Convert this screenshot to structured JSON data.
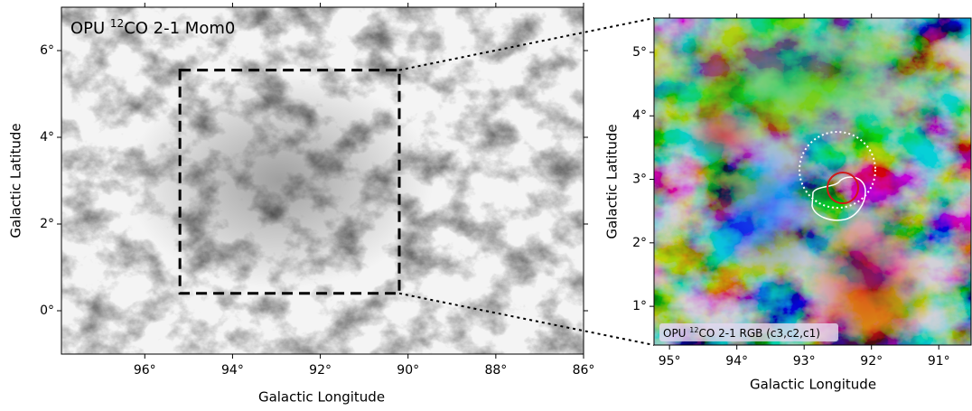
{
  "chart_data": [
    {
      "type": "image",
      "label": {
        "prefix": "OPU ",
        "sup": "12",
        "suffix": "CO 2-1 Mom0"
      },
      "xlabel": "Galactic Longitude",
      "ylabel": "Galactic Latitude",
      "xlim": [
        97.9,
        86
      ],
      "ylim": [
        -1,
        7
      ],
      "xticks": [
        {
          "value": 96,
          "label": "96°"
        },
        {
          "value": 94,
          "label": "94°"
        },
        {
          "value": 92,
          "label": "92°"
        },
        {
          "value": 90,
          "label": "90°"
        },
        {
          "value": 88,
          "label": "88°"
        },
        {
          "value": 86,
          "label": "86°"
        }
      ],
      "yticks": [
        {
          "value": 0,
          "label": "0°"
        },
        {
          "value": 2,
          "label": "2°"
        },
        {
          "value": 4,
          "label": "4°"
        },
        {
          "value": 6,
          "label": "6°"
        }
      ],
      "zoom_box": {
        "lon": [
          95.2,
          90.2
        ],
        "lat": [
          0.4,
          5.55
        ]
      }
    },
    {
      "type": "image",
      "label": {
        "prefix": "OPU ",
        "sup": "12",
        "suffix": "CO 2-1 RGB (c3,c2,c1)"
      },
      "xlabel": "Galactic Longitude",
      "ylabel": "Galactic Latitude",
      "xlim": [
        95.23,
        90.52
      ],
      "ylim": [
        0.39,
        5.54
      ],
      "xticks": [
        {
          "value": 95,
          "label": "95°"
        },
        {
          "value": 94,
          "label": "94°"
        },
        {
          "value": 93,
          "label": "93°"
        },
        {
          "value": 92,
          "label": "92°"
        },
        {
          "value": 91,
          "label": "91°"
        }
      ],
      "yticks": [
        {
          "value": 1,
          "label": "1°"
        },
        {
          "value": 2,
          "label": "2°"
        },
        {
          "value": 3,
          "label": "3°"
        },
        {
          "value": 4,
          "label": "4°"
        },
        {
          "value": 5,
          "label": "5°"
        }
      ]
    }
  ]
}
